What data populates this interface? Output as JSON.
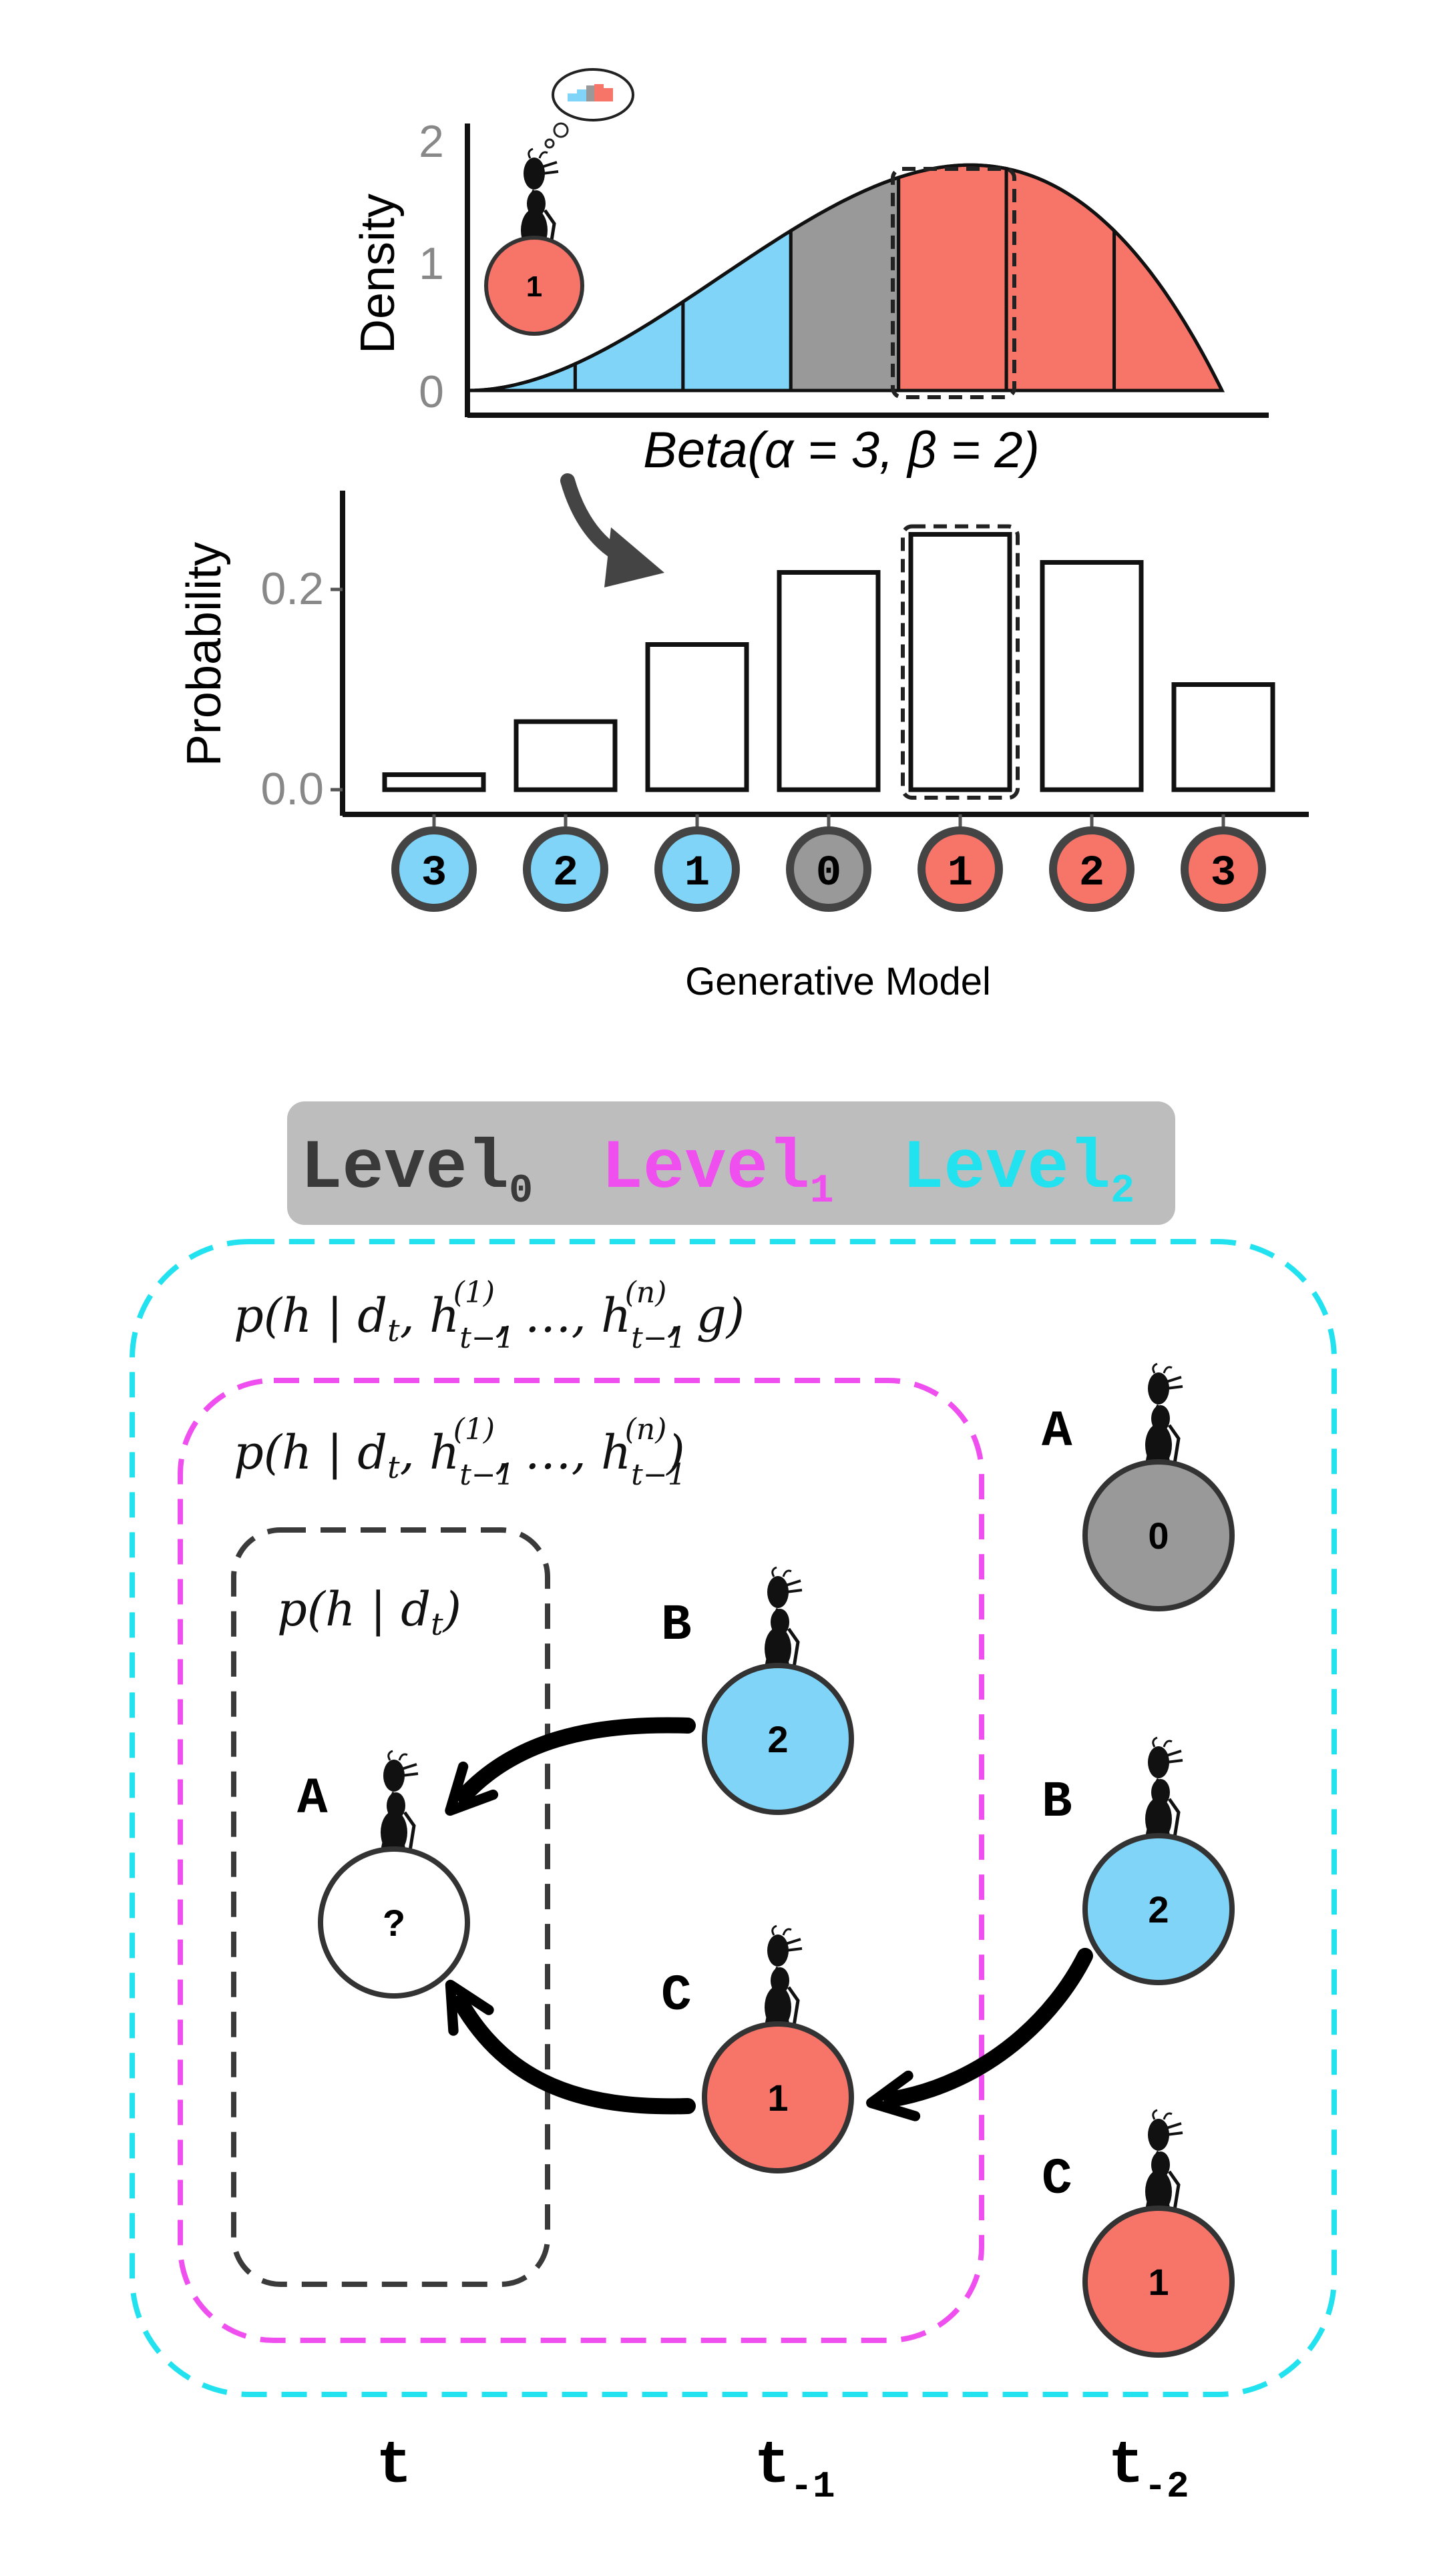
{
  "colors": {
    "blue": "#7fd4f7",
    "blue_light": "#b3e6fb",
    "gray": "#999999",
    "red": "#f77468",
    "cyan": "#22e2ef",
    "magenta": "#f04ff0",
    "dark": "#3a3a3a"
  },
  "density_chart": {
    "ylabel": "Density",
    "yticks": [
      "0",
      "1",
      "2"
    ],
    "xlabel": "Beta(α = 3, β = 2)"
  },
  "chart_data": {
    "type": "bar",
    "title": "",
    "xlabel": "Generative Model",
    "ylabel": "Probability",
    "ylim": [
      0,
      0.3
    ],
    "yticks": [
      "0.0",
      "0.2"
    ],
    "categories": [
      "3",
      "2",
      "1",
      "0",
      "1",
      "2",
      "3"
    ],
    "category_colors": [
      "blue",
      "blue",
      "blue",
      "gray",
      "red",
      "red",
      "red"
    ],
    "values": [
      0.015,
      0.068,
      0.145,
      0.217,
      0.255,
      0.227,
      0.105
    ],
    "highlighted_index": 4
  },
  "thought_agent_label": "1",
  "legend": {
    "level0": "Level",
    "level0_sub": "0",
    "level1": "Level",
    "level1_sub": "1",
    "level2": "Level",
    "level2_sub": "2"
  },
  "formulas": {
    "level2": "p(h | d_t, h_{t−1}^{(1)}, …, h_{t−1}^{(n)}, g)",
    "level1": "p(h | d_t, h_{t−1}^{(1)}, …, h_{t−1}^{(n)})",
    "level0": "p(h | d_t)"
  },
  "agents": {
    "t": [
      {
        "letter": "A",
        "value": "?",
        "color": "white"
      }
    ],
    "t1": [
      {
        "letter": "B",
        "value": "2",
        "color": "blue"
      },
      {
        "letter": "C",
        "value": "1",
        "color": "red"
      }
    ],
    "t2": [
      {
        "letter": "A",
        "value": "0",
        "color": "gray"
      },
      {
        "letter": "B",
        "value": "2",
        "color": "blue"
      },
      {
        "letter": "C",
        "value": "1",
        "color": "red"
      }
    ]
  },
  "time_labels": {
    "t": "t",
    "t1": "t",
    "t1_sub": "-1",
    "t2": "t",
    "t2_sub": "-2"
  }
}
